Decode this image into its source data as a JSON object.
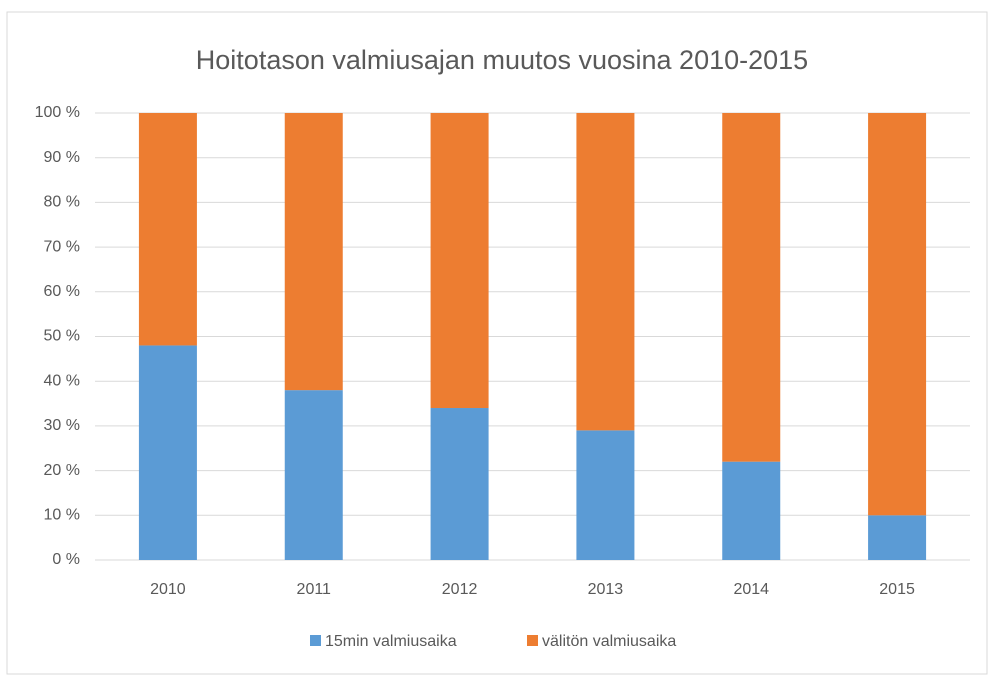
{
  "chart_data": {
    "type": "stacked_bar",
    "title": "Hoitotason valmiusajan muutos vuosina 2010-2015",
    "categories": [
      "2010",
      "2011",
      "2012",
      "2013",
      "2014",
      "2015"
    ],
    "series": [
      {
        "name": "15min valmiusaika",
        "color": "#5b9bd5",
        "values": [
          48,
          38,
          34,
          29,
          22,
          10
        ]
      },
      {
        "name": "välitön valmiusaika",
        "color": "#ed7d31",
        "values": [
          52,
          62,
          66,
          71,
          78,
          90
        ]
      }
    ],
    "ylim": [
      0,
      100
    ],
    "yticks": [
      {
        "value": 0,
        "label": "0 %"
      },
      {
        "value": 10,
        "label": "10 %"
      },
      {
        "value": 20,
        "label": "20 %"
      },
      {
        "value": 30,
        "label": "30 %"
      },
      {
        "value": 40,
        "label": "40 %"
      },
      {
        "value": 50,
        "label": "50 %"
      },
      {
        "value": 60,
        "label": "60 %"
      },
      {
        "value": 70,
        "label": "70 %"
      },
      {
        "value": 80,
        "label": "80 %"
      },
      {
        "value": 90,
        "label": "90 %"
      },
      {
        "value": 100,
        "label": "100 %"
      }
    ],
    "grid": true,
    "legend": "bottom"
  }
}
